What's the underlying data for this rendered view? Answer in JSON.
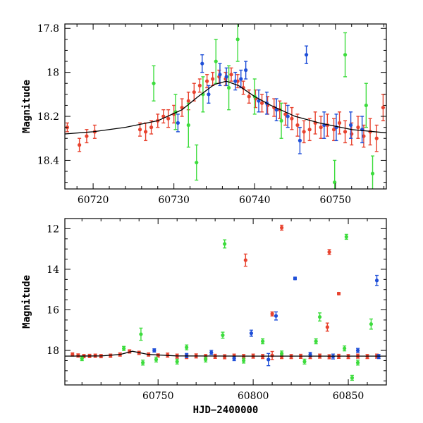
{
  "chart_data": [
    {
      "type": "scatter",
      "panel": "top",
      "xlabel": "",
      "ylabel": "Magnitude",
      "xlim": [
        60716.5,
        60756.3
      ],
      "ylim": [
        18.53,
        17.78
      ],
      "y_inverted": true,
      "x_ticks": [
        60720,
        60730,
        60740,
        60750
      ],
      "y_ticks": [
        17.8,
        18,
        18.2,
        18.4
      ],
      "grid": false,
      "legend": "none",
      "colors": {
        "red": "#e8432f",
        "blue": "#1f4fd8",
        "green": "#3ddc3d",
        "curve": "#000000"
      },
      "model_curve": {
        "x": [
          60716.5,
          60720,
          60724,
          60728,
          60731,
          60733,
          60735,
          60736.5,
          60738,
          60740,
          60742,
          60745,
          60748,
          60752,
          60756.3
        ],
        "y": [
          18.28,
          18.27,
          18.25,
          18.22,
          18.17,
          18.11,
          18.055,
          18.04,
          18.06,
          18.11,
          18.15,
          18.2,
          18.23,
          18.26,
          18.275
        ]
      },
      "series": [
        {
          "name": "",
          "color": "#e8432f",
          "points": [
            [
              60716.8,
              18.25,
              0.02
            ],
            [
              60718.3,
              18.33,
              0.03
            ],
            [
              60719.2,
              18.29,
              0.03
            ],
            [
              60720.2,
              18.27,
              0.03
            ],
            [
              60725.8,
              18.26,
              0.03
            ],
            [
              60726.5,
              18.27,
              0.04
            ],
            [
              60727.2,
              18.25,
              0.03
            ],
            [
              60728.0,
              18.22,
              0.03
            ],
            [
              60728.7,
              18.2,
              0.03
            ],
            [
              60729.3,
              18.21,
              0.04
            ],
            [
              60730.0,
              18.19,
              0.04
            ],
            [
              60731.0,
              18.16,
              0.04
            ],
            [
              60731.8,
              18.13,
              0.04
            ],
            [
              60732.5,
              18.09,
              0.04
            ],
            [
              60733.2,
              18.06,
              0.03
            ],
            [
              60734.1,
              18.04,
              0.03
            ],
            [
              60734.8,
              18.03,
              0.03
            ],
            [
              60735.6,
              18.02,
              0.03
            ],
            [
              60736.4,
              18.03,
              0.03
            ],
            [
              60737.1,
              18.01,
              0.03
            ],
            [
              60737.9,
              18.04,
              0.03
            ],
            [
              60738.6,
              18.07,
              0.03
            ],
            [
              60739.3,
              18.11,
              0.03
            ],
            [
              60740.1,
              18.12,
              0.04
            ],
            [
              60740.9,
              18.14,
              0.04
            ],
            [
              60741.6,
              18.15,
              0.04
            ],
            [
              60742.4,
              18.16,
              0.04
            ],
            [
              60743.1,
              18.17,
              0.04
            ],
            [
              60743.8,
              18.19,
              0.05
            ],
            [
              60744.6,
              18.21,
              0.05
            ],
            [
              60745.3,
              18.24,
              0.05
            ],
            [
              60746.1,
              18.27,
              0.05
            ],
            [
              60746.8,
              18.26,
              0.05
            ],
            [
              60747.5,
              18.23,
              0.05
            ],
            [
              60748.2,
              18.25,
              0.05
            ],
            [
              60749.0,
              18.24,
              0.05
            ],
            [
              60749.8,
              18.26,
              0.05
            ],
            [
              60750.5,
              18.23,
              0.05
            ],
            [
              60751.2,
              18.27,
              0.05
            ],
            [
              60752.0,
              18.28,
              0.05
            ],
            [
              60752.8,
              18.25,
              0.05
            ],
            [
              60753.5,
              18.29,
              0.05
            ],
            [
              60754.3,
              18.27,
              0.06
            ],
            [
              60755.1,
              18.3,
              0.06
            ],
            [
              60755.9,
              18.16,
              0.06
            ]
          ]
        },
        {
          "name": "",
          "color": "#1f4fd8",
          "points": [
            [
              60730.5,
              18.23,
              0.04
            ],
            [
              60733.5,
              17.96,
              0.04
            ],
            [
              60734.3,
              18.1,
              0.04
            ],
            [
              60735.7,
              18.01,
              0.05
            ],
            [
              60736.5,
              18.02,
              0.04
            ],
            [
              60737.6,
              18.04,
              0.04
            ],
            [
              60738.3,
              18.03,
              0.04
            ],
            [
              60738.9,
              17.99,
              0.04
            ],
            [
              60740.5,
              18.13,
              0.05
            ],
            [
              60741.5,
              18.14,
              0.05
            ],
            [
              60742.7,
              18.17,
              0.05
            ],
            [
              60744.1,
              18.2,
              0.05
            ],
            [
              60745.6,
              18.31,
              0.06
            ],
            [
              60746.4,
              17.92,
              0.04
            ],
            [
              60748.6,
              18.24,
              0.06
            ],
            [
              60750.1,
              18.25,
              0.06
            ],
            [
              60751.9,
              18.24,
              0.06
            ],
            [
              60753.3,
              18.26,
              0.06
            ]
          ]
        },
        {
          "name": "",
          "color": "#3ddc3d",
          "points": [
            [
              60727.5,
              18.05,
              0.08
            ],
            [
              60730.2,
              18.18,
              0.08
            ],
            [
              60731.8,
              18.24,
              0.1
            ],
            [
              60732.8,
              18.41,
              0.08
            ],
            [
              60733.6,
              18.1,
              0.08
            ],
            [
              60735.2,
              17.95,
              0.1
            ],
            [
              60736.8,
              18.07,
              0.1
            ],
            [
              60737.9,
              17.85,
              0.1
            ],
            [
              60740.0,
              18.11,
              0.08
            ],
            [
              60743.3,
              18.22,
              0.08
            ],
            [
              60749.9,
              18.5,
              0.1
            ],
            [
              60751.2,
              17.92,
              0.1
            ],
            [
              60753.8,
              18.15,
              0.1
            ],
            [
              60754.6,
              18.46,
              0.08
            ]
          ]
        }
      ]
    },
    {
      "type": "scatter",
      "panel": "bottom",
      "xlabel": "HJD−2400000",
      "ylabel": "Magnitude",
      "xlim": [
        60701,
        60870
      ],
      "ylim": [
        19.7,
        11.5
      ],
      "y_inverted": true,
      "x_ticks": [
        60750,
        60800,
        60850
      ],
      "y_ticks": [
        12,
        14,
        16,
        18
      ],
      "grid": false,
      "legend": "none",
      "model_curve": {
        "x": [
          60701,
          60720,
          60730,
          60736.5,
          60745,
          60760,
          60800,
          60870
        ],
        "y": [
          18.28,
          18.27,
          18.2,
          18.04,
          18.2,
          18.27,
          18.28,
          18.28
        ]
      },
      "series": [
        {
          "name": "",
          "color": "#e8432f",
          "points": [
            [
              60705,
              18.2,
              0.08
            ],
            [
              60708,
              18.25,
              0.08
            ],
            [
              60711,
              18.28,
              0.08
            ],
            [
              60714,
              18.27,
              0.08
            ],
            [
              60717,
              18.26,
              0.08
            ],
            [
              60720,
              18.28,
              0.08
            ],
            [
              60725,
              18.26,
              0.08
            ],
            [
              60730,
              18.2,
              0.08
            ],
            [
              60735,
              18.05,
              0.08
            ],
            [
              60740,
              18.12,
              0.08
            ],
            [
              60745,
              18.2,
              0.08
            ],
            [
              60750,
              18.25,
              0.08
            ],
            [
              60755,
              18.23,
              0.1
            ],
            [
              60760,
              18.28,
              0.1
            ],
            [
              60765,
              18.3,
              0.1
            ],
            [
              60770,
              18.27,
              0.1
            ],
            [
              60775,
              18.3,
              0.1
            ],
            [
              60780,
              18.29,
              0.1
            ],
            [
              60785,
              18.31,
              0.1
            ],
            [
              60790,
              18.28,
              0.1
            ],
            [
              60795,
              18.3,
              0.1
            ],
            [
              60800,
              18.28,
              0.1
            ],
            [
              60805,
              18.3,
              0.1
            ],
            [
              60810,
              18.25,
              0.2
            ],
            [
              60815,
              18.3,
              0.1
            ],
            [
              60820,
              18.3,
              0.1
            ],
            [
              60825,
              18.29,
              0.1
            ],
            [
              60830,
              18.3,
              0.1
            ],
            [
              60835,
              18.28,
              0.1
            ],
            [
              60840,
              18.31,
              0.1
            ],
            [
              60845,
              18.29,
              0.1
            ],
            [
              60850,
              18.3,
              0.1
            ],
            [
              60855,
              18.28,
              0.1
            ],
            [
              60860,
              18.3,
              0.1
            ],
            [
              60865,
              18.28,
              0.1
            ],
            [
              60796,
              13.55,
              0.3
            ],
            [
              60810,
              16.2,
              0.1
            ],
            [
              60815,
              11.95,
              0.12
            ],
            [
              60839,
              16.85,
              0.2
            ],
            [
              60840,
              13.15,
              0.12
            ],
            [
              60845,
              15.2,
              0.06
            ]
          ]
        },
        {
          "name": "",
          "color": "#1f4fd8",
          "points": [
            [
              60748,
              18.0,
              0.08
            ],
            [
              60765,
              18.25,
              0.1
            ],
            [
              60778,
              18.1,
              0.1
            ],
            [
              60790,
              18.4,
              0.1
            ],
            [
              60799,
              17.15,
              0.15
            ],
            [
              60808,
              18.45,
              0.3
            ],
            [
              60812,
              16.3,
              0.2
            ],
            [
              60822,
              14.45,
              0.06
            ],
            [
              60830,
              18.2,
              0.1
            ],
            [
              60842,
              18.3,
              0.12
            ],
            [
              60855,
              18.0,
              0.1
            ],
            [
              60865,
              14.55,
              0.25
            ],
            [
              60866,
              18.3,
              0.1
            ]
          ]
        },
        {
          "name": "",
          "color": "#3ddc3d",
          "points": [
            [
              60710,
              18.4,
              0.1
            ],
            [
              60732,
              17.9,
              0.1
            ],
            [
              60741,
              17.2,
              0.3
            ],
            [
              60742,
              18.6,
              0.12
            ],
            [
              60749,
              18.45,
              0.12
            ],
            [
              60760,
              18.55,
              0.12
            ],
            [
              60765,
              17.85,
              0.12
            ],
            [
              60775,
              18.45,
              0.12
            ],
            [
              60784,
              17.25,
              0.15
            ],
            [
              60785,
              12.75,
              0.2
            ],
            [
              60795,
              18.5,
              0.12
            ],
            [
              60805,
              17.55,
              0.12
            ],
            [
              60815,
              18.15,
              0.12
            ],
            [
              60827,
              18.55,
              0.12
            ],
            [
              60833,
              17.55,
              0.12
            ],
            [
              60835,
              16.35,
              0.2
            ],
            [
              60848,
              17.9,
              0.12
            ],
            [
              60849,
              12.4,
              0.12
            ],
            [
              60852,
              19.35,
              0.12
            ],
            [
              60855,
              18.6,
              0.12
            ],
            [
              60862,
              16.7,
              0.25
            ]
          ]
        }
      ]
    }
  ]
}
